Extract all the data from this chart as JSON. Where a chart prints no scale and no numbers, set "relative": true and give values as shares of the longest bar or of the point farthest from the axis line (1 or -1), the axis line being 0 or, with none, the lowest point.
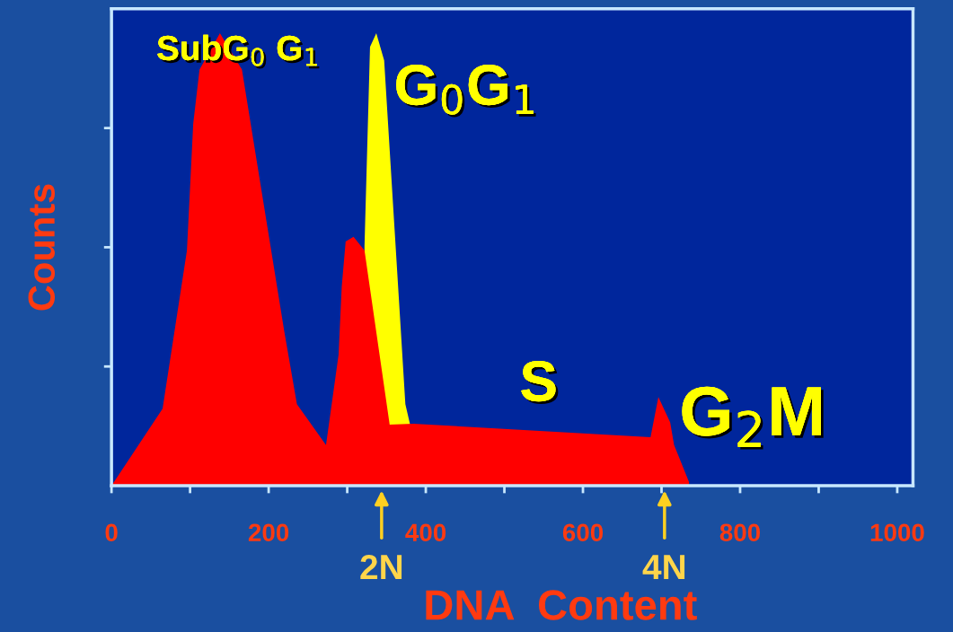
{
  "chart_data": {
    "type": "area",
    "relative": true,
    "xlabel": "DNA  Content",
    "ylabel": "Counts",
    "xlim": [
      0,
      1020
    ],
    "xticks": [
      0,
      {
        "value": 100,
        "label": null
      },
      200,
      {
        "value": 300,
        "label": null
      },
      400,
      {
        "value": 500,
        "label": null
      },
      600,
      {
        "value": 700,
        "label": null
      },
      800,
      {
        "value": 900,
        "label": null
      },
      1000
    ],
    "series": [
      {
        "color": "#ffff00",
        "x": [
          322,
          329,
          337,
          347,
          374,
          380
        ],
        "values": [
          0.53,
          0.97,
          1.0,
          0.94,
          0.18,
          0.135
        ]
      },
      {
        "color": "#ff0000",
        "x": [
          0,
          65,
          96,
          104,
          112,
          138,
          166,
          220,
          236,
          273,
          289,
          293,
          298,
          308,
          322,
          354,
          384,
          686,
          696,
          711,
          716,
          735
        ],
        "values": [
          0,
          0.17,
          0.52,
          0.8,
          0.92,
          1.0,
          0.92,
          0.34,
          0.18,
          0.09,
          0.29,
          0.44,
          0.54,
          0.55,
          0.52,
          0.135,
          0.137,
          0.107,
          0.196,
          0.14,
          0.09,
          0.008
        ]
      }
    ],
    "annotations": [
      "SubG$_{0}$ G$_{1}$",
      "G$_{0}$G$_{1}$",
      "S",
      "G$_{2}$M",
      "2N",
      "4N"
    ],
    "grid": false,
    "legend": false
  }
}
